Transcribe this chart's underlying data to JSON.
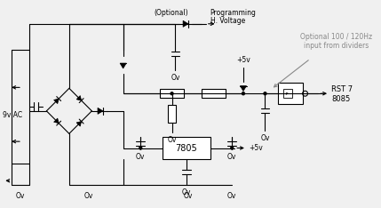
{
  "background_color": "#f0f0f0",
  "line_color": "#000000",
  "annotation_color": "#888888",
  "figsize": [
    4.29,
    2.34
  ],
  "dpi": 100,
  "labels": {
    "optional": "(Optional)",
    "programming": "Programming",
    "hvoltage": "H. Voltage",
    "optional2": "Optional 100 / 120Hz",
    "input_dividers": "input from dividers",
    "rst7": "RST 7",
    "i8085": "8085",
    "plus5v_top": "+5v",
    "plus5v_bot": "+5v",
    "ac9v": "9v AC",
    "reg7805": "7805",
    "ov1": "Ov",
    "ov2": "Ov",
    "ov3": "Ov",
    "ov4": "Ov",
    "ov5": "Ov",
    "ov6": "Ov",
    "ov7": "Ov"
  }
}
